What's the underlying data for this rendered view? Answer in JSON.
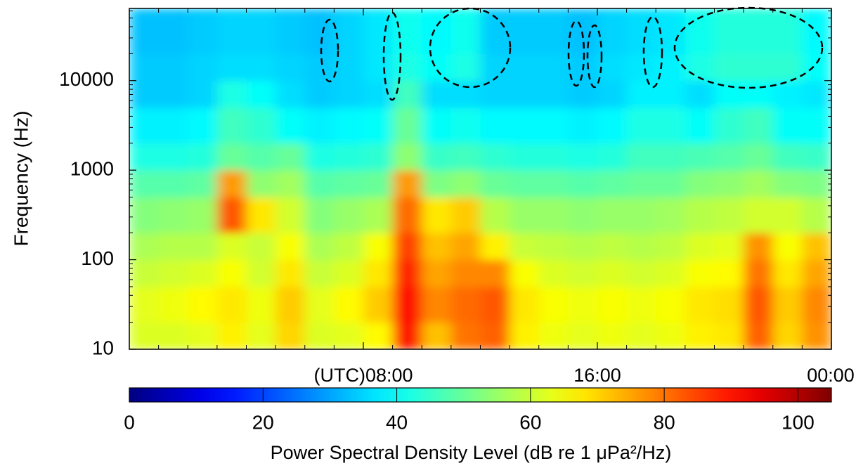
{
  "chart_data": {
    "type": "heatmap",
    "ylabel": "Frequency (Hz)",
    "colorbar_label": "Power Spectral Density Level (dB re 1 μPa²/Hz)",
    "colormap": "jet",
    "yscale": "log",
    "xbins": [
      0,
      1,
      2,
      3,
      4,
      5,
      6,
      7,
      8,
      9,
      10,
      11,
      12,
      13,
      14,
      15,
      16,
      17,
      18,
      19,
      20,
      21,
      22,
      23,
      24
    ],
    "ybins": [
      10,
      20,
      50,
      100,
      200,
      500,
      1000,
      2000,
      5000,
      10000,
      20000,
      64000
    ],
    "z": [
      [
        62,
        62,
        63,
        67,
        63,
        70,
        62,
        63,
        66,
        90,
        72,
        80,
        82,
        67,
        64,
        63,
        64,
        63,
        64,
        67,
        68,
        82,
        70,
        77
      ],
      [
        63,
        64,
        66,
        68,
        64,
        71,
        63,
        66,
        71,
        91,
        78,
        81,
        83,
        68,
        65,
        64,
        65,
        64,
        65,
        68,
        69,
        83,
        71,
        78
      ],
      [
        60,
        61,
        62,
        65,
        61,
        68,
        60,
        62,
        68,
        88,
        75,
        78,
        78,
        65,
        62,
        61,
        62,
        61,
        62,
        65,
        66,
        80,
        68,
        75
      ],
      [
        57,
        58,
        58,
        62,
        60,
        65,
        57,
        59,
        65,
        85,
        72,
        75,
        67,
        60,
        59,
        58,
        59,
        58,
        59,
        62,
        63,
        77,
        65,
        72
      ],
      [
        53,
        54,
        55,
        83,
        68,
        61,
        53,
        55,
        57,
        81,
        68,
        71,
        58,
        55,
        55,
        54,
        55,
        55,
        56,
        58,
        59,
        61,
        61,
        58
      ],
      [
        48,
        48,
        49,
        76,
        54,
        56,
        48,
        49,
        50,
        76,
        52,
        54,
        50,
        49,
        49,
        48,
        49,
        50,
        50,
        53,
        54,
        56,
        53,
        52
      ],
      [
        42,
        42,
        43,
        50,
        48,
        50,
        42,
        43,
        44,
        54,
        45,
        46,
        44,
        43,
        43,
        42,
        43,
        46,
        46,
        47,
        48,
        50,
        46,
        45
      ],
      [
        38,
        38,
        39,
        46,
        44,
        40,
        38,
        39,
        40,
        50,
        40,
        41,
        39,
        39,
        39,
        38,
        39,
        42,
        42,
        40,
        44,
        46,
        40,
        40
      ],
      [
        34,
        34,
        35,
        42,
        40,
        36,
        34,
        35,
        36,
        46,
        36,
        36,
        35,
        35,
        35,
        34,
        35,
        38,
        38,
        36,
        40,
        40,
        38,
        37
      ],
      [
        34,
        34,
        35,
        36,
        36,
        35,
        34,
        35,
        37,
        42,
        40,
        42,
        35,
        35,
        35,
        34,
        36,
        37,
        38,
        42,
        44,
        44,
        44,
        40
      ],
      [
        33,
        33,
        34,
        35,
        35,
        34,
        33,
        35,
        37,
        41,
        39,
        41,
        34,
        34,
        34,
        33,
        35,
        36,
        37,
        41,
        43,
        43,
        43,
        39
      ]
    ],
    "xlim": [
      0,
      24
    ],
    "xticks": [
      {
        "value": 8,
        "label": "(UTC)08:00"
      },
      {
        "value": 16,
        "label": "16:00"
      },
      {
        "value": 24,
        "label": "00:00"
      }
    ],
    "xminorticks": [
      1,
      2,
      3,
      4,
      5,
      6,
      7,
      9,
      10,
      11,
      12,
      13,
      14,
      15,
      17,
      18,
      19,
      20,
      21,
      22,
      23
    ],
    "ylim": [
      10,
      64000
    ],
    "yticks": [
      10,
      100,
      1000,
      10000
    ],
    "yminorticks": [
      20,
      30,
      40,
      50,
      60,
      70,
      80,
      90,
      200,
      300,
      400,
      500,
      600,
      700,
      800,
      900,
      2000,
      3000,
      4000,
      5000,
      6000,
      7000,
      8000,
      9000,
      20000,
      30000,
      40000,
      50000,
      60000
    ],
    "clim": [
      0,
      105
    ],
    "colorbar_ticks": [
      0,
      20,
      40,
      60,
      80,
      100
    ]
  }
}
